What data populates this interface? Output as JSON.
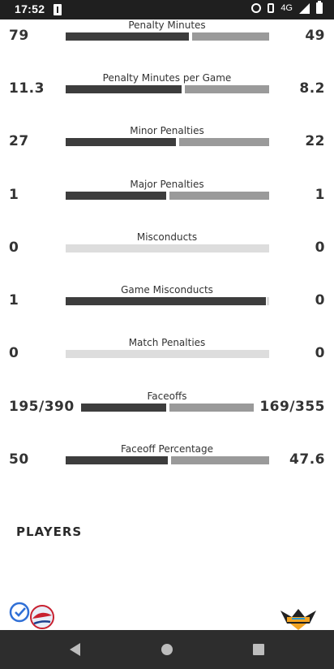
{
  "status_bar": {
    "time": "17:52",
    "network": "4G"
  },
  "stats": [
    {
      "label": "Penalty Minutes",
      "home": "79",
      "away": "49",
      "home_share": 0.617
    },
    {
      "label": "Penalty Minutes per Game",
      "home": "11.3",
      "away": "8.2",
      "home_share": 0.579
    },
    {
      "label": "Minor Penalties",
      "home": "27",
      "away": "22",
      "home_share": 0.551
    },
    {
      "label": "Major Penalties",
      "home": "1",
      "away": "1",
      "home_share": 0.5
    },
    {
      "label": "Misconducts",
      "home": "0",
      "away": "0",
      "home_share": null
    },
    {
      "label": "Game Misconducts",
      "home": "1",
      "away": "0",
      "home_share": 1.0
    },
    {
      "label": "Match Penalties",
      "home": "0",
      "away": "0",
      "home_share": null
    },
    {
      "label": "Faceoffs",
      "home": "195/390",
      "away": "169/355",
      "home_share": 0.5
    },
    {
      "label": "Faceoff Percentage",
      "home": "50",
      "away": "47.6",
      "home_share": 0.512
    }
  ],
  "players": {
    "title": "PLAYERS"
  },
  "colors": {
    "home_bar": "#3d3d3d",
    "away_bar": "#9a9a9a",
    "empty_bar": "#dddddd"
  }
}
